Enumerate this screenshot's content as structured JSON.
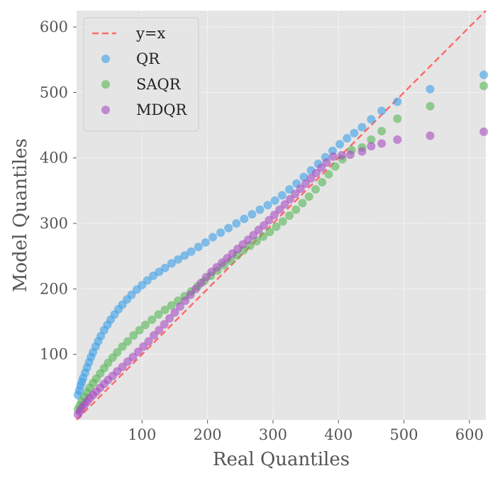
{
  "chart_data": {
    "type": "scatter",
    "title": "",
    "xlabel": "Real Quantiles",
    "ylabel": "Model Quantiles",
    "xlim": [
      0,
      625
    ],
    "ylim": [
      0,
      625
    ],
    "xticks": [
      100,
      200,
      300,
      400,
      500,
      600
    ],
    "yticks": [
      100,
      200,
      300,
      400,
      500,
      600
    ],
    "grid": true,
    "legend_position": "top-left",
    "reference_line": {
      "name": "y=x",
      "color": "#ff6b6b",
      "dash": "dashed"
    },
    "series": [
      {
        "name": "QR",
        "color": "#3a9ee8",
        "points": [
          [
            2,
            38
          ],
          [
            4,
            45
          ],
          [
            6,
            52
          ],
          [
            8,
            58
          ],
          [
            10,
            64
          ],
          [
            13,
            72
          ],
          [
            16,
            80
          ],
          [
            19,
            88
          ],
          [
            22,
            96
          ],
          [
            25,
            103
          ],
          [
            29,
            112
          ],
          [
            33,
            120
          ],
          [
            37,
            128
          ],
          [
            42,
            137
          ],
          [
            47,
            145
          ],
          [
            52,
            153
          ],
          [
            58,
            161
          ],
          [
            64,
            169
          ],
          [
            70,
            176
          ],
          [
            77,
            184
          ],
          [
            84,
            191
          ],
          [
            92,
            199
          ],
          [
            100,
            206
          ],
          [
            108,
            213
          ],
          [
            117,
            220
          ],
          [
            126,
            226
          ],
          [
            135,
            232
          ],
          [
            145,
            239
          ],
          [
            155,
            245
          ],
          [
            165,
            251
          ],
          [
            175,
            257
          ],
          [
            186,
            264
          ],
          [
            197,
            271
          ],
          [
            208,
            279
          ],
          [
            220,
            286
          ],
          [
            232,
            293
          ],
          [
            244,
            300
          ],
          [
            256,
            307
          ],
          [
            268,
            314
          ],
          [
            280,
            321
          ],
          [
            292,
            328
          ],
          [
            303,
            335
          ],
          [
            314,
            343
          ],
          [
            325,
            352
          ],
          [
            336,
            361
          ],
          [
            347,
            371
          ],
          [
            358,
            381
          ],
          [
            369,
            391
          ],
          [
            380,
            401
          ],
          [
            391,
            411
          ],
          [
            402,
            421
          ],
          [
            413,
            430
          ],
          [
            424,
            438
          ],
          [
            436,
            447
          ],
          [
            450,
            459
          ],
          [
            466,
            472
          ],
          [
            490,
            486
          ],
          [
            540,
            505
          ],
          [
            622,
            527
          ]
        ]
      },
      {
        "name": "SAQR",
        "color": "#55b555",
        "points": [
          [
            2,
            16
          ],
          [
            5,
            22
          ],
          [
            8,
            28
          ],
          [
            12,
            35
          ],
          [
            16,
            42
          ],
          [
            20,
            49
          ],
          [
            25,
            56
          ],
          [
            30,
            63
          ],
          [
            36,
            71
          ],
          [
            42,
            79
          ],
          [
            48,
            87
          ],
          [
            55,
            95
          ],
          [
            62,
            103
          ],
          [
            70,
            112
          ],
          [
            78,
            120
          ],
          [
            87,
            129
          ],
          [
            96,
            137
          ],
          [
            105,
            145
          ],
          [
            115,
            153
          ],
          [
            125,
            161
          ],
          [
            135,
            168
          ],
          [
            145,
            175
          ],
          [
            155,
            182
          ],
          [
            165,
            189
          ],
          [
            175,
            196
          ],
          [
            185,
            204
          ],
          [
            195,
            212
          ],
          [
            205,
            220
          ],
          [
            215,
            228
          ],
          [
            225,
            236
          ],
          [
            235,
            243
          ],
          [
            245,
            251
          ],
          [
            255,
            259
          ],
          [
            265,
            266
          ],
          [
            275,
            273
          ],
          [
            285,
            280
          ],
          [
            295,
            287
          ],
          [
            305,
            295
          ],
          [
            315,
            303
          ],
          [
            325,
            312
          ],
          [
            335,
            321
          ],
          [
            345,
            331
          ],
          [
            355,
            341
          ],
          [
            365,
            352
          ],
          [
            375,
            363
          ],
          [
            385,
            375
          ],
          [
            395,
            387
          ],
          [
            406,
            398
          ],
          [
            420,
            412
          ],
          [
            436,
            416
          ],
          [
            450,
            428
          ],
          [
            466,
            441
          ],
          [
            490,
            460
          ],
          [
            540,
            479
          ],
          [
            622,
            510
          ]
        ]
      },
      {
        "name": "MDQR",
        "color": "#a64bbf",
        "points": [
          [
            2,
            8
          ],
          [
            5,
            13
          ],
          [
            8,
            18
          ],
          [
            12,
            23
          ],
          [
            16,
            28
          ],
          [
            20,
            33
          ],
          [
            25,
            38
          ],
          [
            30,
            43
          ],
          [
            36,
            49
          ],
          [
            42,
            55
          ],
          [
            48,
            61
          ],
          [
            55,
            67
          ],
          [
            62,
            74
          ],
          [
            70,
            81
          ],
          [
            78,
            89
          ],
          [
            86,
            96
          ],
          [
            94,
            104
          ],
          [
            102,
            112
          ],
          [
            110,
            120
          ],
          [
            118,
            129
          ],
          [
            126,
            137
          ],
          [
            134,
            146
          ],
          [
            142,
            155
          ],
          [
            150,
            164
          ],
          [
            158,
            173
          ],
          [
            166,
            182
          ],
          [
            174,
            191
          ],
          [
            182,
            200
          ],
          [
            190,
            209
          ],
          [
            198,
            218
          ],
          [
            206,
            226
          ],
          [
            214,
            233
          ],
          [
            222,
            240
          ],
          [
            230,
            247
          ],
          [
            238,
            254
          ],
          [
            246,
            261
          ],
          [
            254,
            268
          ],
          [
            262,
            275
          ],
          [
            270,
            282
          ],
          [
            278,
            290
          ],
          [
            286,
            297
          ],
          [
            294,
            305
          ],
          [
            302,
            313
          ],
          [
            310,
            321
          ],
          [
            318,
            329
          ],
          [
            326,
            337
          ],
          [
            334,
            345
          ],
          [
            342,
            353
          ],
          [
            350,
            361
          ],
          [
            358,
            369
          ],
          [
            366,
            377
          ],
          [
            374,
            385
          ],
          [
            382,
            393
          ],
          [
            392,
            402
          ],
          [
            405,
            404
          ],
          [
            418,
            405
          ],
          [
            436,
            410
          ],
          [
            450,
            418
          ],
          [
            466,
            422
          ],
          [
            490,
            428
          ],
          [
            540,
            434
          ],
          [
            622,
            440
          ]
        ]
      }
    ]
  }
}
